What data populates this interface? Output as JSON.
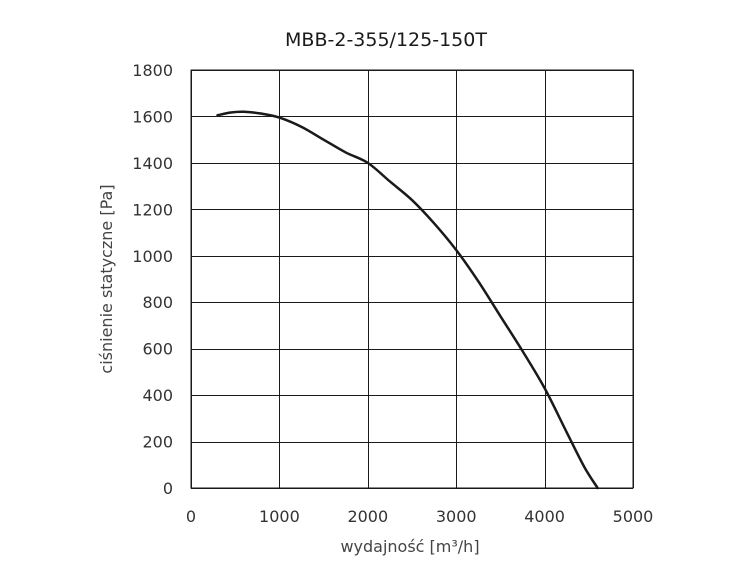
{
  "chart_data": {
    "type": "line",
    "title": "MBB-2-355/125-150T",
    "xlabel": "wydajność [m³/h]",
    "ylabel": "ciśnienie statyczne [Pa]",
    "xlim": [
      0,
      5000
    ],
    "ylim": [
      0,
      1800
    ],
    "xticks": [
      "0",
      "1000",
      "2000",
      "3000",
      "4000",
      "5000"
    ],
    "yticks": [
      "0",
      "200",
      "400",
      "600",
      "800",
      "1000",
      "1200",
      "1400",
      "1600",
      "1800"
    ],
    "grid": true,
    "line_color": "#1a1a1a",
    "series": [
      {
        "x": [
          300,
          450,
          600,
          800,
          1000,
          1250,
          1500,
          1750,
          2000,
          2250,
          2500,
          2750,
          3000,
          3250,
          3500,
          3750,
          4000,
          4250,
          4450,
          4600
        ],
        "y": [
          1605,
          1617,
          1620,
          1612,
          1595,
          1555,
          1500,
          1445,
          1400,
          1320,
          1240,
          1140,
          1025,
          890,
          740,
          590,
          430,
          240,
          90,
          0
        ]
      }
    ]
  }
}
